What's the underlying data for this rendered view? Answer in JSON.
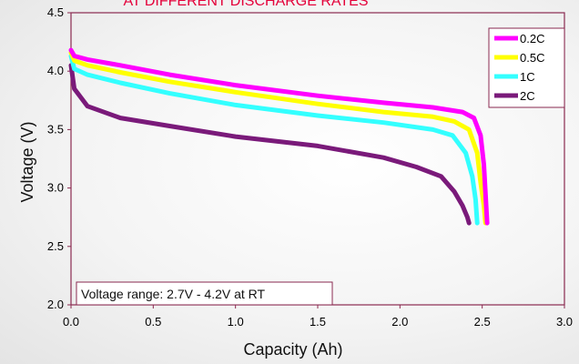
{
  "chart_data": {
    "type": "line",
    "title": "AT DIFFERENT DISCHARGE RATES",
    "xlabel": "Capacity (Ah)",
    "ylabel": "Voltage (V)",
    "xlim": [
      0.0,
      3.0
    ],
    "ylim": [
      2.0,
      4.5
    ],
    "x_ticks": [
      "0.0",
      "0.5",
      "1.0",
      "1.5",
      "2.0",
      "2.5",
      "3.0"
    ],
    "y_ticks": [
      "2.0",
      "2.5",
      "3.0",
      "3.5",
      "4.0",
      "4.5"
    ],
    "grid": false,
    "legend_position": "top-right",
    "annotation": "Voltage range: 2.7V - 4.2V at RT",
    "colors": {
      "title": "#e4003a",
      "axis_ticks": "#c0002a",
      "frame": "#8a2a50"
    },
    "series": [
      {
        "name": "0.2C",
        "color": "#ff00ff",
        "points": [
          [
            0.0,
            4.18
          ],
          [
            0.02,
            4.13
          ],
          [
            0.1,
            4.1
          ],
          [
            0.3,
            4.05
          ],
          [
            0.6,
            3.97
          ],
          [
            1.0,
            3.88
          ],
          [
            1.5,
            3.79
          ],
          [
            1.9,
            3.73
          ],
          [
            2.2,
            3.69
          ],
          [
            2.38,
            3.65
          ],
          [
            2.45,
            3.6
          ],
          [
            2.49,
            3.45
          ],
          [
            2.51,
            3.2
          ],
          [
            2.52,
            2.95
          ],
          [
            2.53,
            2.7
          ]
        ]
      },
      {
        "name": "0.5C",
        "color": "#ffff00",
        "points": [
          [
            0.0,
            4.16
          ],
          [
            0.02,
            4.09
          ],
          [
            0.1,
            4.05
          ],
          [
            0.3,
            3.99
          ],
          [
            0.6,
            3.91
          ],
          [
            1.0,
            3.82
          ],
          [
            1.5,
            3.72
          ],
          [
            1.9,
            3.65
          ],
          [
            2.2,
            3.61
          ],
          [
            2.33,
            3.57
          ],
          [
            2.42,
            3.5
          ],
          [
            2.47,
            3.3
          ],
          [
            2.49,
            3.05
          ],
          [
            2.51,
            2.85
          ],
          [
            2.52,
            2.7
          ]
        ]
      },
      {
        "name": "1C",
        "color": "#33ffff",
        "points": [
          [
            0.0,
            4.13
          ],
          [
            0.02,
            4.02
          ],
          [
            0.1,
            3.97
          ],
          [
            0.3,
            3.9
          ],
          [
            0.6,
            3.81
          ],
          [
            1.0,
            3.71
          ],
          [
            1.5,
            3.62
          ],
          [
            1.9,
            3.56
          ],
          [
            2.2,
            3.5
          ],
          [
            2.32,
            3.45
          ],
          [
            2.4,
            3.3
          ],
          [
            2.44,
            3.1
          ],
          [
            2.46,
            2.9
          ],
          [
            2.47,
            2.7
          ]
        ]
      },
      {
        "name": "2C",
        "color": "#7a1a7a",
        "points": [
          [
            0.0,
            4.05
          ],
          [
            0.02,
            3.85
          ],
          [
            0.1,
            3.7
          ],
          [
            0.3,
            3.6
          ],
          [
            0.6,
            3.53
          ],
          [
            1.0,
            3.44
          ],
          [
            1.5,
            3.36
          ],
          [
            1.9,
            3.26
          ],
          [
            2.1,
            3.18
          ],
          [
            2.25,
            3.1
          ],
          [
            2.33,
            2.97
          ],
          [
            2.38,
            2.85
          ],
          [
            2.41,
            2.75
          ],
          [
            2.42,
            2.7
          ]
        ]
      }
    ]
  }
}
